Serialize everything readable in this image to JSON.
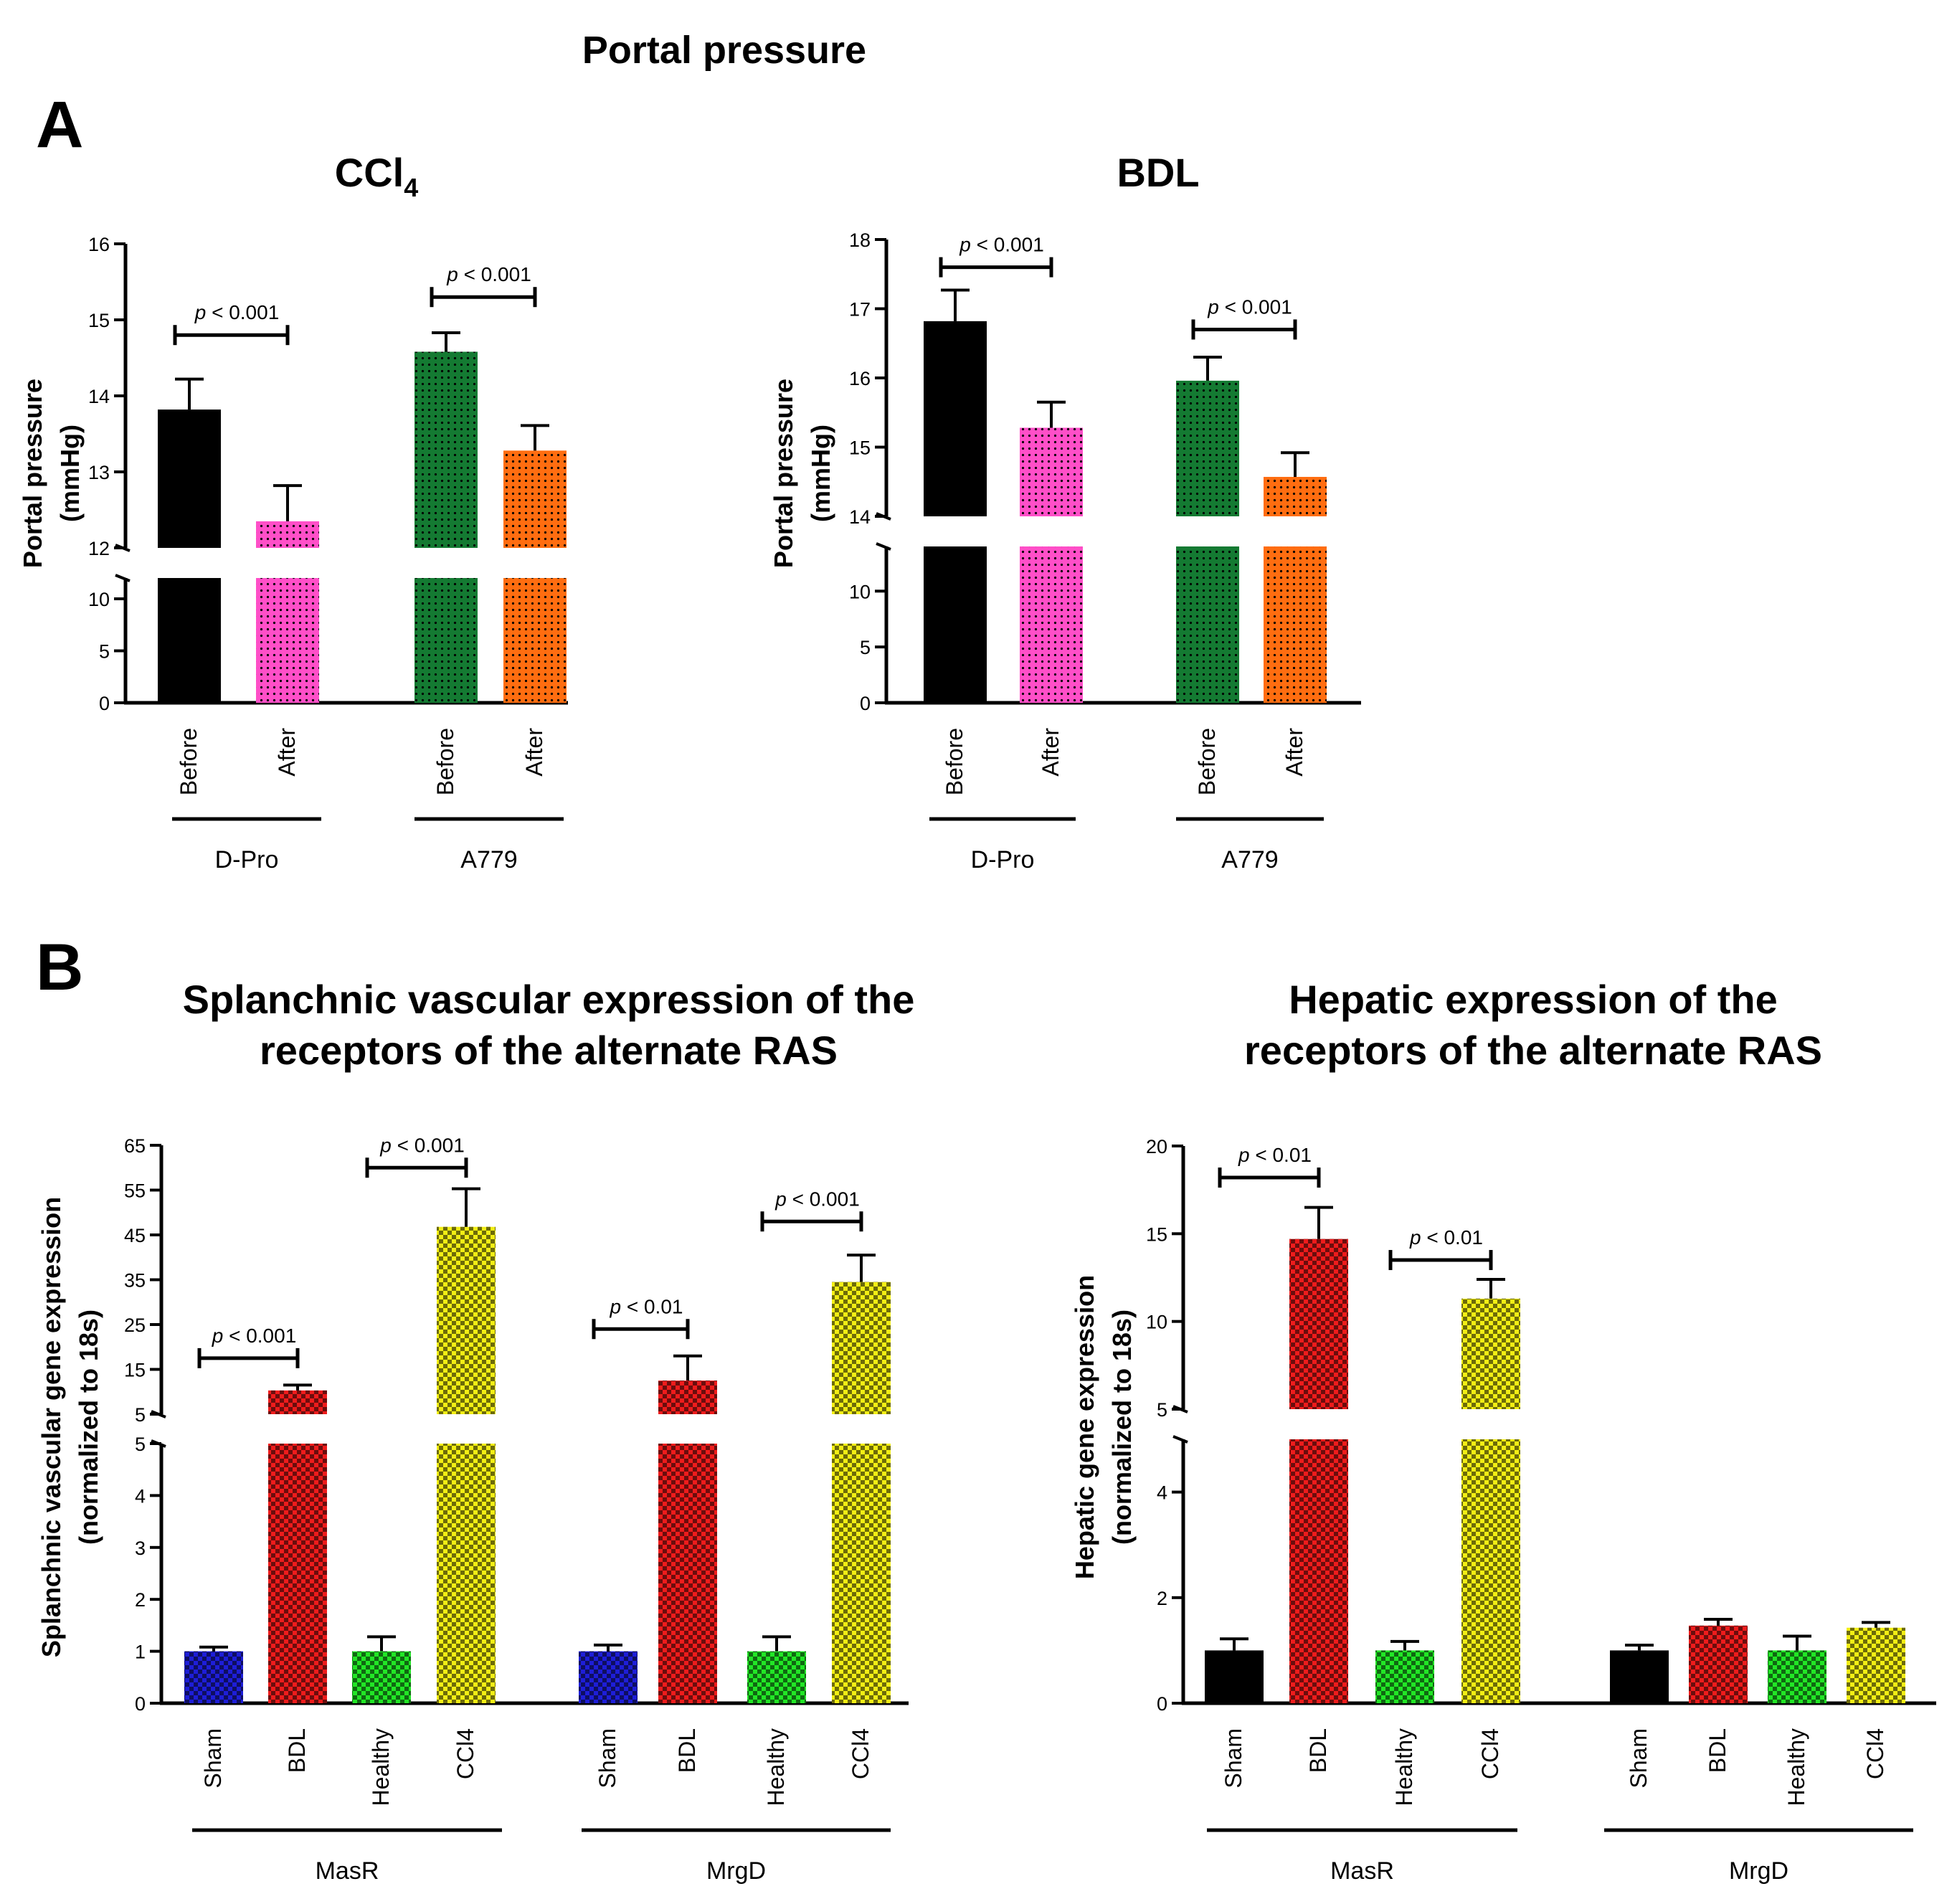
{
  "title": "Portal pressure",
  "colors": {
    "black": "#000000",
    "pink": "#ff4fc8",
    "green": "#147a32",
    "orange": "#ff6d10",
    "blue": "#1e1ed8",
    "red": "#ee1c1c",
    "lime": "#22e626",
    "yellow": "#f2ee14"
  },
  "chart_data": [
    {
      "id": "ccl4",
      "type": "bar",
      "panel": "A",
      "title": "CCl",
      "title_sub": "4",
      "ylabel_lines": [
        "Portal pressure",
        "(mmHg)"
      ],
      "axis_break": true,
      "ylim_lower": [
        0,
        12
      ],
      "ylim_upper": [
        12,
        16
      ],
      "lower_ticks": [
        0,
        5,
        10
      ],
      "upper_ticks": [
        12,
        13,
        14,
        15,
        16
      ],
      "groups": [
        "D-Pro",
        "A779"
      ],
      "categories": [
        "Before",
        "After",
        "Before",
        "After"
      ],
      "values": [
        13.82,
        12.35,
        14.58,
        13.28
      ],
      "errors": [
        0.4,
        0.47,
        0.25,
        0.33
      ],
      "fills": [
        "black",
        "pink",
        "green",
        "orange"
      ],
      "significance": [
        {
          "from": 0,
          "to": 1,
          "label": "p < 0.001",
          "y": 14.8
        },
        {
          "from": 2,
          "to": 3,
          "label": "p < 0.001",
          "y": 15.3
        }
      ]
    },
    {
      "id": "bdl",
      "type": "bar",
      "panel": "",
      "title": "BDL",
      "title_sub": "",
      "ylabel_lines": [
        "Portal pressure",
        "(mmHg)"
      ],
      "axis_break": true,
      "ylim_lower": [
        0,
        14
      ],
      "ylim_upper": [
        14,
        18
      ],
      "lower_ticks": [
        0,
        5,
        10
      ],
      "upper_ticks": [
        14,
        15,
        16,
        17,
        18
      ],
      "groups": [
        "D-Pro",
        "A779"
      ],
      "categories": [
        "Before",
        "After",
        "Before",
        "After"
      ],
      "values": [
        16.82,
        15.28,
        15.96,
        14.57
      ],
      "errors": [
        0.45,
        0.37,
        0.34,
        0.35
      ],
      "fills": [
        "black",
        "pink",
        "green",
        "orange"
      ],
      "significance": [
        {
          "from": 0,
          "to": 1,
          "label": "p < 0.001",
          "y": 17.6
        },
        {
          "from": 2,
          "to": 3,
          "label": "p < 0.001",
          "y": 16.7
        }
      ]
    },
    {
      "id": "splanchnic",
      "type": "bar",
      "panel": "B",
      "title_lines": [
        "Splanchnic vascular expression of the",
        "receptors of the alternate RAS"
      ],
      "ylabel_lines": [
        "Splanchnic vascular gene expression",
        "(normalized to 18s)"
      ],
      "axis_break": true,
      "ylim_lower": [
        0,
        5
      ],
      "ylim_upper": [
        5,
        65
      ],
      "lower_ticks": [
        0,
        1,
        2,
        3,
        4,
        5
      ],
      "upper_ticks": [
        5,
        15,
        25,
        35,
        45,
        55,
        65
      ],
      "groups": [
        "MasR",
        "MrgD"
      ],
      "categories": [
        "Sham",
        "BDL",
        "Healthy",
        "CCl4",
        "Sham",
        "BDL",
        "Healthy",
        "CCl4"
      ],
      "values": [
        1.0,
        10.3,
        1.0,
        46.8,
        1.0,
        12.5,
        1.0,
        34.5
      ],
      "errors": [
        0.08,
        1.2,
        0.28,
        8.5,
        0.12,
        5.5,
        0.28,
        6.0
      ],
      "fills": [
        "blue",
        "red",
        "lime",
        "yellow",
        "blue",
        "red",
        "lime",
        "yellow"
      ],
      "significance": [
        {
          "from": 0,
          "to": 1,
          "label": "p < 0.001",
          "y": 17.5
        },
        {
          "from": 2,
          "to": 3,
          "label": "p < 0.001",
          "y": 60
        },
        {
          "from": 4,
          "to": 5,
          "label": "p < 0.01",
          "y": 24
        },
        {
          "from": 6,
          "to": 7,
          "label": "p < 0.001",
          "y": 48
        }
      ]
    },
    {
      "id": "hepatic",
      "type": "bar",
      "panel": "",
      "title_lines": [
        "Hepatic expression of the",
        "receptors of the alternate RAS"
      ],
      "ylabel_lines": [
        "Hepatic gene expression",
        "(normalized to 18s)"
      ],
      "axis_break": true,
      "ylim_lower": [
        0,
        5
      ],
      "ylim_upper": [
        5,
        20
      ],
      "lower_ticks": [
        0,
        2,
        4
      ],
      "upper_ticks": [
        5,
        10,
        15,
        20
      ],
      "groups": [
        "MasR",
        "MrgD"
      ],
      "categories": [
        "Sham",
        "BDL",
        "Healthy",
        "CCl4",
        "Sham",
        "BDL",
        "Healthy",
        "CCl4"
      ],
      "values": [
        1.0,
        14.7,
        1.0,
        11.3,
        1.0,
        1.47,
        1.0,
        1.43
      ],
      "errors": [
        0.22,
        1.8,
        0.17,
        1.1,
        0.1,
        0.12,
        0.27,
        0.1
      ],
      "fills": [
        "black",
        "red",
        "lime",
        "yellow",
        "black",
        "red",
        "lime",
        "yellow"
      ],
      "significance": [
        {
          "from": 0,
          "to": 1,
          "label": "p < 0.01",
          "y": 18.2
        },
        {
          "from": 2,
          "to": 3,
          "label": "p < 0.01",
          "y": 13.5
        }
      ]
    }
  ]
}
